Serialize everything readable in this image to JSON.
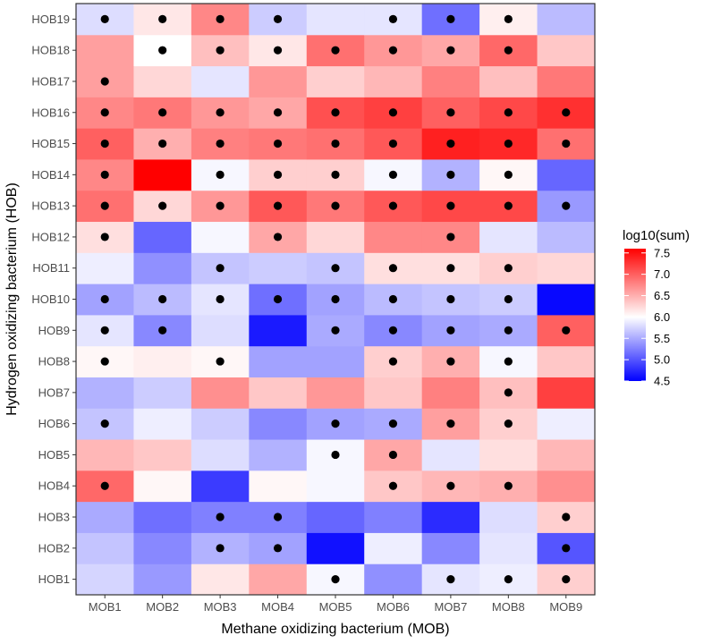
{
  "chart_data": {
    "type": "heatmap",
    "xlabel": "Methane oxidizing bacterium (MOB)",
    "ylabel": "Hydrogen oxidizing bacterium (HOB)",
    "x_categories": [
      "MOB1",
      "MOB2",
      "MOB3",
      "MOB4",
      "MOB5",
      "MOB6",
      "MOB7",
      "MOB8",
      "MOB9"
    ],
    "y_categories": [
      "HOB1",
      "HOB2",
      "HOB3",
      "HOB4",
      "HOB5",
      "HOB6",
      "HOB7",
      "HOB8",
      "HOB9",
      "HOB10",
      "HOB11",
      "HOB12",
      "HOB13",
      "HOB14",
      "HOB15",
      "HOB16",
      "HOB17",
      "HOB18",
      "HOB19"
    ],
    "color_scale": {
      "title": "log10(sum)",
      "min": 4.5,
      "mid": 6.0,
      "max": 7.6,
      "low_color": "#0000FF",
      "mid_color": "#FFFFFF",
      "high_color": "#FF0000",
      "ticks": [
        "7.5",
        "7.0",
        "6.5",
        "6.0",
        "5.5",
        "5.0",
        "4.5"
      ]
    },
    "values": [
      [
        5.75,
        5.4,
        6.15,
        6.55,
        5.95,
        5.35,
        5.85,
        5.9,
        6.3
      ],
      [
        5.65,
        5.3,
        5.55,
        5.45,
        4.6,
        5.9,
        5.3,
        5.85,
        5.0
      ],
      [
        5.5,
        5.15,
        5.25,
        5.25,
        5.1,
        5.25,
        4.75,
        5.8,
        6.3
      ],
      [
        6.95,
        6.05,
        4.85,
        6.05,
        5.95,
        6.35,
        6.45,
        6.5,
        6.7
      ],
      [
        6.45,
        6.35,
        5.8,
        5.55,
        5.95,
        6.55,
        5.85,
        6.2,
        6.45
      ],
      [
        5.65,
        5.9,
        5.7,
        5.3,
        5.45,
        5.5,
        6.6,
        6.3,
        5.9
      ],
      [
        5.55,
        5.7,
        6.7,
        6.35,
        6.65,
        6.35,
        6.8,
        6.4,
        7.2
      ],
      [
        6.05,
        6.1,
        6.05,
        5.45,
        5.45,
        6.3,
        6.5,
        5.95,
        6.35
      ],
      [
        5.85,
        5.3,
        5.8,
        4.65,
        5.5,
        5.3,
        5.45,
        5.5,
        7.0
      ],
      [
        5.45,
        5.6,
        5.85,
        5.15,
        5.45,
        5.6,
        5.65,
        5.7,
        4.55
      ],
      [
        5.9,
        5.35,
        5.65,
        5.7,
        5.65,
        6.2,
        6.2,
        6.3,
        6.25
      ],
      [
        6.2,
        5.1,
        5.95,
        6.55,
        6.25,
        6.75,
        6.75,
        5.85,
        5.6
      ],
      [
        6.9,
        6.25,
        6.65,
        7.05,
        6.85,
        7.05,
        7.15,
        7.15,
        5.4
      ],
      [
        6.75,
        7.6,
        5.95,
        6.3,
        6.3,
        5.95,
        5.55,
        6.05,
        5.1
      ],
      [
        7.0,
        6.5,
        6.8,
        6.85,
        6.9,
        7.05,
        7.4,
        7.35,
        6.9
      ],
      [
        6.75,
        6.85,
        6.65,
        6.55,
        7.1,
        7.2,
        7.0,
        7.15,
        7.3
      ],
      [
        6.6,
        6.25,
        5.85,
        6.65,
        6.3,
        6.45,
        6.8,
        6.4,
        6.85
      ],
      [
        6.6,
        6.0,
        6.4,
        6.15,
        6.9,
        6.65,
        6.55,
        6.95,
        6.35
      ],
      [
        5.8,
        6.15,
        6.75,
        5.7,
        5.85,
        5.85,
        5.15,
        6.1,
        5.6
      ]
    ],
    "markers": [
      [
        0,
        0,
        0,
        0,
        1,
        0,
        1,
        1,
        1
      ],
      [
        0,
        0,
        1,
        1,
        0,
        0,
        0,
        0,
        1
      ],
      [
        0,
        0,
        1,
        1,
        0,
        0,
        0,
        0,
        1
      ],
      [
        1,
        0,
        0,
        0,
        0,
        1,
        1,
        1,
        0
      ],
      [
        0,
        0,
        0,
        0,
        1,
        1,
        0,
        0,
        0
      ],
      [
        1,
        0,
        0,
        0,
        1,
        1,
        1,
        1,
        0
      ],
      [
        0,
        0,
        0,
        0,
        0,
        0,
        0,
        1,
        0
      ],
      [
        1,
        0,
        1,
        0,
        0,
        1,
        1,
        1,
        0
      ],
      [
        1,
        1,
        0,
        0,
        1,
        1,
        1,
        1,
        1
      ],
      [
        1,
        1,
        1,
        1,
        1,
        1,
        1,
        1,
        0
      ],
      [
        0,
        0,
        1,
        0,
        1,
        1,
        1,
        1,
        0
      ],
      [
        1,
        0,
        0,
        1,
        0,
        0,
        1,
        0,
        0
      ],
      [
        1,
        1,
        1,
        1,
        1,
        1,
        1,
        1,
        1
      ],
      [
        1,
        0,
        1,
        1,
        1,
        1,
        1,
        1,
        0
      ],
      [
        1,
        1,
        1,
        1,
        1,
        1,
        1,
        1,
        1
      ],
      [
        1,
        1,
        1,
        1,
        1,
        1,
        1,
        1,
        1
      ],
      [
        1,
        0,
        0,
        0,
        0,
        0,
        0,
        0,
        0
      ],
      [
        0,
        1,
        1,
        1,
        1,
        1,
        1,
        1,
        0
      ],
      [
        1,
        1,
        1,
        1,
        0,
        1,
        1,
        1,
        0
      ]
    ]
  }
}
